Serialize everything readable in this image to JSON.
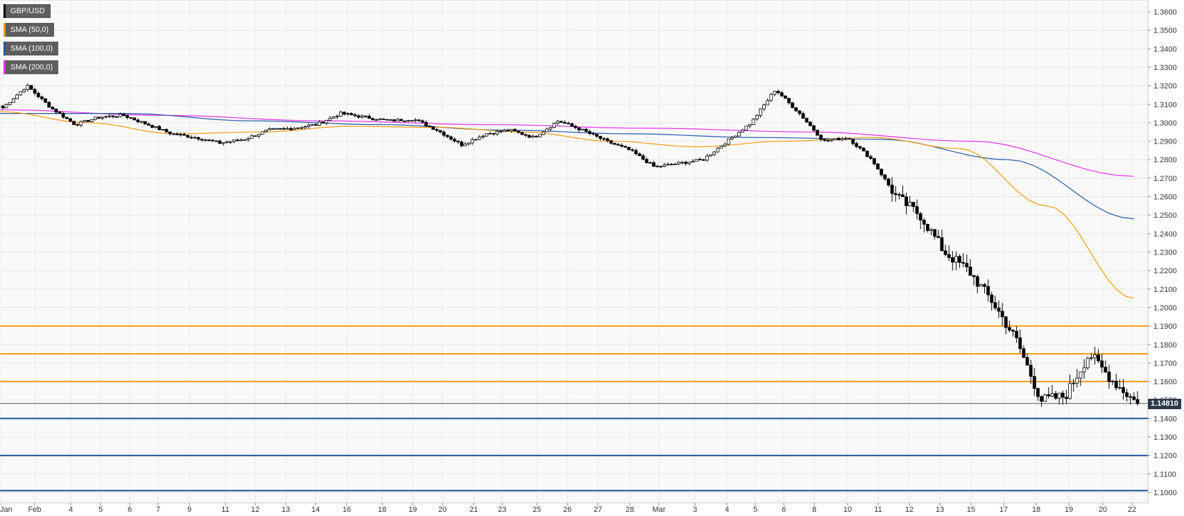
{
  "legend": [
    {
      "label": "GBP/USD",
      "color": "#000000"
    },
    {
      "label": "SMA (50,0)",
      "color": "#f39c12"
    },
    {
      "label": "SMA (100,0)",
      "color": "#1f5aa6"
    },
    {
      "label": "SMA (200,0)",
      "color": "#e62ee6"
    }
  ],
  "current_price": "1.14810",
  "chart_data": {
    "type": "candlestick",
    "symbol": "GBP/USD",
    "ylim": [
      1.095,
      1.365
    ],
    "y_ticks": [
      "1.1000",
      "1.1100",
      "1.1200",
      "1.1300",
      "1.1400",
      "1.1500",
      "1.1600",
      "1.1700",
      "1.1800",
      "1.1900",
      "1.2000",
      "1.2100",
      "1.2200",
      "1.2300",
      "1.2400",
      "1.2500",
      "1.2600",
      "1.2700",
      "1.2800",
      "1.2900",
      "1.3000",
      "1.3100",
      "1.3200",
      "1.3300",
      "1.3400",
      "1.3500",
      "1.3600"
    ],
    "x_ticks": [
      "Jan",
      "Feb",
      "4",
      "5",
      "6",
      "7",
      "9",
      "11",
      "12",
      "13",
      "14",
      "16",
      "18",
      "19",
      "20",
      "21",
      "23",
      "25",
      "26",
      "27",
      "28",
      "Mar",
      "3",
      "4",
      "5",
      "6",
      "8",
      "10",
      "11",
      "12",
      "13",
      "15",
      "17",
      "18",
      "19",
      "20",
      "22"
    ],
    "resistance_levels": [
      1.19,
      1.175,
      1.16
    ],
    "support_levels": [
      1.14,
      1.12,
      1.101
    ],
    "last_price": 1.1481,
    "price_keypoints": [
      1.308,
      1.32,
      1.308,
      1.299,
      1.303,
      1.304,
      1.299,
      1.294,
      1.292,
      1.289,
      1.291,
      1.296,
      1.297,
      1.299,
      1.305,
      1.303,
      1.301,
      1.302,
      1.296,
      1.288,
      1.294,
      1.296,
      1.292,
      1.301,
      1.296,
      1.29,
      1.285,
      1.276,
      1.278,
      1.28,
      1.29,
      1.3,
      1.318,
      1.305,
      1.29,
      1.292,
      1.28,
      1.26,
      1.25,
      1.23,
      1.22,
      1.203,
      1.182,
      1.15,
      1.152,
      1.175,
      1.16,
      1.1481
    ],
    "sma_50": [
      1.306,
      1.3,
      1.294,
      1.295,
      1.298,
      1.2975,
      1.295,
      1.29,
      1.287,
      1.29,
      1.292,
      1.286,
      1.255,
      1.205
    ],
    "sma_100": [
      1.305,
      1.305,
      1.301,
      1.299,
      1.296,
      1.294,
      1.292,
      1.291,
      1.28,
      1.248
    ],
    "sma_200": [
      1.307,
      1.304,
      1.301,
      1.299,
      1.297,
      1.295,
      1.29,
      1.271
    ]
  }
}
